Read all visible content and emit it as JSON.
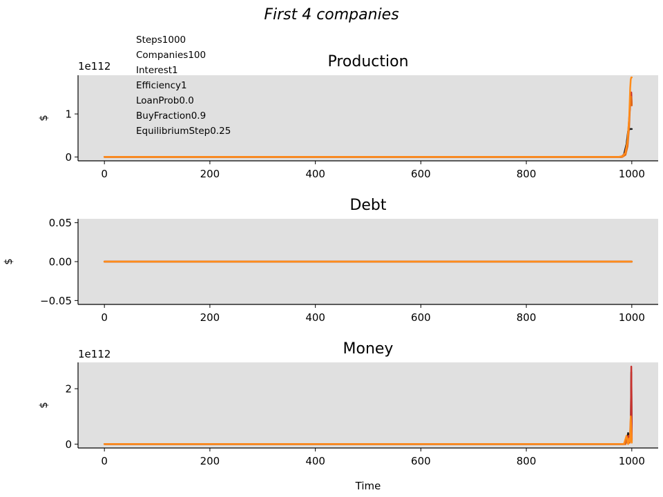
{
  "figure": {
    "suptitle": "First 4 companies",
    "params": [
      "Steps1000",
      "Companies100",
      "Interest1",
      "Efficiency1",
      "LoanProb0.0",
      "BuyFraction0.9",
      "EquilibriumStep0.25"
    ],
    "xlabel": "Time",
    "colors": {
      "background": "#e0e0e0",
      "company_1": "#1a1a1a",
      "company_2": "#c8322e",
      "company_3": "#e06a1a",
      "company_4": "#ff8c1a"
    }
  },
  "chart_data": [
    {
      "type": "line",
      "title": "Production",
      "ylabel": "$",
      "offset_text": "1e112",
      "xlim": [
        -50,
        1050
      ],
      "ylim": [
        -0.09,
        1.9
      ],
      "xticks": [
        0,
        200,
        400,
        600,
        800,
        1000
      ],
      "xtick_labels": [
        "0",
        "200",
        "400",
        "600",
        "800",
        "1000"
      ],
      "yticks": [
        0,
        1
      ],
      "ytick_labels": [
        "0",
        "1"
      ],
      "grid": false,
      "series": [
        {
          "x": [
            0,
            980,
            985,
            990,
            993,
            996,
            997,
            999,
            1000
          ],
          "y": [
            0,
            0,
            0.05,
            0.3,
            0.6,
            0.65,
            0.65,
            0.65,
            0.65
          ],
          "color": "#1a1a1a"
        },
        {
          "x": [
            0,
            980,
            987,
            992,
            995,
            997,
            999,
            1000
          ],
          "y": [
            0,
            0,
            0.08,
            0.35,
            0.9,
            1.2,
            1.5,
            1.2
          ],
          "color": "#c8322e"
        },
        {
          "x": [
            0,
            982,
            988,
            992,
            995,
            997,
            999,
            1000
          ],
          "y": [
            0,
            0,
            0.05,
            0.25,
            0.7,
            1.3,
            1.4,
            1.2
          ],
          "color": "#e06a1a"
        },
        {
          "x": [
            0,
            975,
            983,
            988,
            992,
            995,
            997,
            998,
            999,
            1000
          ],
          "y": [
            0,
            0,
            0.02,
            0.1,
            0.4,
            0.9,
            1.6,
            1.8,
            1.85,
            1.85
          ],
          "color": "#ff8c1a"
        }
      ]
    },
    {
      "type": "line",
      "title": "Debt",
      "ylabel": "$",
      "xlim": [
        -50,
        1050
      ],
      "ylim": [
        -0.055,
        0.055
      ],
      "xticks": [
        0,
        200,
        400,
        600,
        800,
        1000
      ],
      "xtick_labels": [
        "0",
        "200",
        "400",
        "600",
        "800",
        "1000"
      ],
      "yticks": [
        0.05,
        0.0,
        -0.05
      ],
      "ytick_labels": [
        "0.05",
        "0.00",
        "−0.05"
      ],
      "grid": false,
      "series": [
        {
          "x": [
            0,
            1000
          ],
          "y": [
            0,
            0
          ],
          "color": "#1a1a1a"
        },
        {
          "x": [
            0,
            1000
          ],
          "y": [
            0,
            0
          ],
          "color": "#c8322e"
        },
        {
          "x": [
            0,
            1000
          ],
          "y": [
            0,
            0
          ],
          "color": "#e06a1a"
        },
        {
          "x": [
            0,
            1000
          ],
          "y": [
            0,
            0
          ],
          "color": "#ff8c1a"
        }
      ]
    },
    {
      "type": "line",
      "title": "Money",
      "ylabel": "$",
      "offset_text": "1e112",
      "xlim": [
        -50,
        1050
      ],
      "ylim": [
        -0.14,
        2.95
      ],
      "xticks": [
        0,
        200,
        400,
        600,
        800,
        1000
      ],
      "xtick_labels": [
        "0",
        "200",
        "400",
        "600",
        "800",
        "1000"
      ],
      "yticks": [
        0,
        2
      ],
      "ytick_labels": [
        "0",
        "2"
      ],
      "grid": false,
      "series": [
        {
          "x": [
            0,
            985,
            990,
            993,
            996,
            998,
            999,
            1000
          ],
          "y": [
            0,
            0,
            0.1,
            0.4,
            0.1,
            0.6,
            2.6,
            0.1
          ],
          "color": "#1a1a1a"
        },
        {
          "x": [
            0,
            988,
            994,
            997,
            998,
            999,
            1000
          ],
          "y": [
            0,
            0,
            0.3,
            0.1,
            0.2,
            2.8,
            0.2
          ],
          "color": "#c8322e"
        },
        {
          "x": [
            0,
            988,
            993,
            996,
            998,
            999,
            1000
          ],
          "y": [
            0,
            0,
            0.2,
            0.05,
            1.0,
            0.2,
            0.1
          ],
          "color": "#e06a1a"
        },
        {
          "x": [
            0,
            985,
            990,
            993,
            995,
            997,
            998,
            999,
            1000
          ],
          "y": [
            0,
            0,
            0.3,
            0.0,
            0.2,
            0.1,
            1.0,
            0.6,
            0.05
          ],
          "color": "#ff8c1a"
        }
      ]
    }
  ]
}
